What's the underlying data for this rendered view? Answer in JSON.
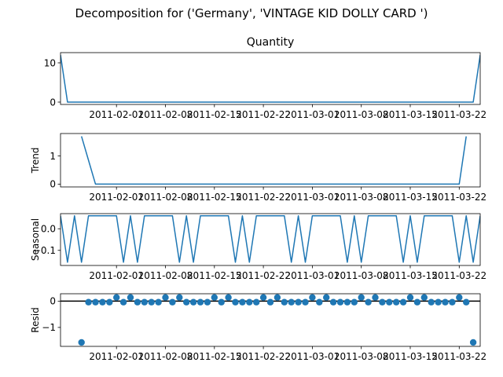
{
  "figure": {
    "suptitle": "Decomposition for ('Germany', 'VINTAGE KID DOLLY CARD ')"
  },
  "chart_data": {
    "type": "line",
    "x_tick_labels": [
      "2011-02-01",
      "2011-02-08",
      "2011-02-15",
      "2011-02-22",
      "2011-03-01",
      "2011-03-08",
      "2011-03-15",
      "2011-03-22"
    ],
    "x_range": [
      "2011-01-24",
      "2011-03-25"
    ],
    "color": "#1f77b4",
    "panels": [
      {
        "key": "quantity",
        "title": "Quantity",
        "ylabel": "",
        "type": "line",
        "ylim": [
          -0.6,
          12.6
        ],
        "ytick_labels": [
          "0",
          "10"
        ],
        "ytick_values": [
          0,
          10
        ],
        "x": [
          "2011-01-24",
          "2011-01-25",
          "2011-03-24",
          "2011-03-25"
        ],
        "values": [
          12,
          0,
          0,
          12
        ]
      },
      {
        "key": "trend",
        "title": "",
        "ylabel": "Trend",
        "type": "line",
        "ylim": [
          -0.1,
          1.8
        ],
        "ytick_labels": [
          "0",
          "1"
        ],
        "ytick_values": [
          0,
          1
        ],
        "x": [
          "2011-01-27",
          "2011-01-28",
          "2011-01-29",
          "2011-03-22",
          "2011-03-23"
        ],
        "values": [
          1.7,
          0.85,
          0,
          0,
          1.7
        ]
      },
      {
        "key": "seasonal",
        "title": "",
        "ylabel": "Seasonal",
        "type": "line",
        "ylim": [
          -0.17,
          0.07
        ],
        "ytick_labels": [
          "0.0",
          "−0.1"
        ],
        "ytick_values": [
          0.0,
          -0.1
        ],
        "x_start": "2011-01-24",
        "pattern": [
          0.06,
          -0.155,
          0.06,
          -0.155,
          0.06,
          0.06,
          0.06,
          0.06
        ],
        "num_points": 61
      },
      {
        "key": "resid",
        "title": "",
        "ylabel": "Resid",
        "type": "scatter",
        "ylim": [
          -1.72,
          0.28
        ],
        "ytick_labels": [
          "0",
          "−1"
        ],
        "ytick_values": [
          0,
          -1
        ],
        "hline": 0,
        "x_start": "2011-01-27",
        "values": [
          -1.57,
          -0.04,
          -0.04,
          -0.04,
          -0.04,
          0.14,
          -0.04,
          0.14,
          -0.04,
          -0.04,
          -0.04,
          -0.04,
          0.14,
          -0.04,
          0.14,
          -0.04,
          -0.04,
          -0.04,
          -0.04,
          0.14,
          -0.04,
          0.14,
          -0.04,
          -0.04,
          -0.04,
          -0.04,
          0.14,
          -0.04,
          0.14,
          -0.04,
          -0.04,
          -0.04,
          -0.04,
          0.14,
          -0.04,
          0.14,
          -0.04,
          -0.04,
          -0.04,
          -0.04,
          0.14,
          -0.04,
          0.14,
          -0.04,
          -0.04,
          -0.04,
          -0.04,
          0.14,
          -0.04,
          0.14,
          -0.04,
          -0.04,
          -0.04,
          -0.04,
          0.14,
          -0.04,
          -1.57
        ]
      }
    ]
  }
}
